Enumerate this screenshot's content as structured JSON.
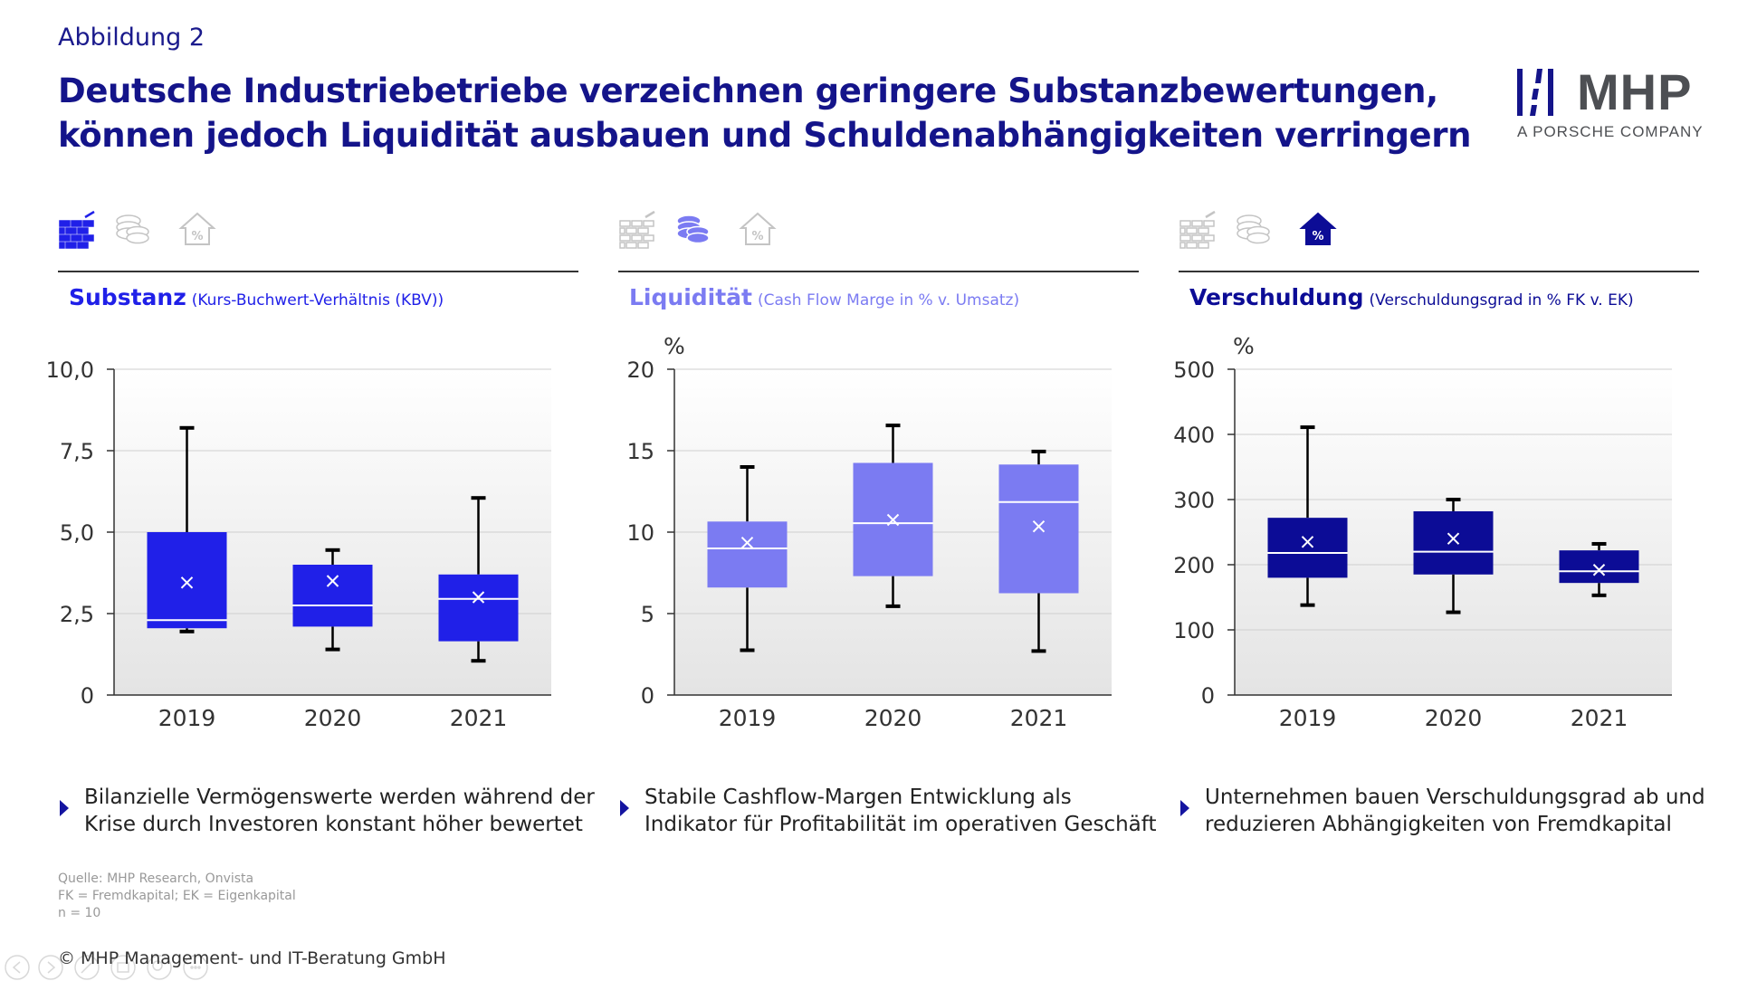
{
  "figure_label": "Abbildung 2",
  "headline": {
    "line1": "Deutsche Industriebetriebe verzeichnen geringere Substanzbewertungen,",
    "line2": "können jedoch Liquidität ausbauen und Schuldenabhängigkeiten verringern"
  },
  "logo": {
    "mark": "MHP",
    "sub": "A PORSCHE COMPANY"
  },
  "colors": {
    "navy": "#14148a",
    "blue": "#2020e8",
    "lavender": "#7b7bf2",
    "darkblue": "#0c0c96",
    "inactive": "#c4c4c4"
  },
  "panels": [
    {
      "icons": [
        "bricks-icon",
        "coins-icon",
        "house-percent-icon"
      ],
      "active_icon": 0,
      "title": "Substanz",
      "subtitle": "(Kurs-Buchwert-Verhältnis (KBV))",
      "unit": "",
      "bullet": [
        "Bilanzielle Vermögenswerte werden während der",
        "Krise durch Investoren konstant höher bewertet"
      ]
    },
    {
      "icons": [
        "bricks-icon",
        "coins-icon",
        "house-percent-icon"
      ],
      "active_icon": 1,
      "title": "Liquidität",
      "subtitle": "(Cash Flow Marge in % v. Umsatz)",
      "unit": "%",
      "bullet": [
        "Stabile Cashflow-Margen Entwicklung als",
        "Indikator für Profitabilität im operativen Geschäft"
      ]
    },
    {
      "icons": [
        "bricks-icon",
        "coins-icon",
        "house-percent-icon"
      ],
      "active_icon": 2,
      "title": "Verschuldung",
      "subtitle": "(Verschuldungsgrad in % FK v. EK)",
      "unit": "%",
      "bullet": [
        "Unternehmen bauen Verschuldungsgrad ab und",
        "reduzieren Abhängigkeiten von Fremdkapital"
      ]
    }
  ],
  "chart_data": [
    {
      "type": "boxplot",
      "title": "Substanz (Kurs-Buchwert-Verhältnis (KBV))",
      "color": "#2020e8",
      "categories": [
        "2019",
        "2020",
        "2021"
      ],
      "ylim": [
        0,
        10
      ],
      "yticks": [
        0,
        2.5,
        5,
        7.5,
        10
      ],
      "ytick_labels": [
        "0",
        "2,5",
        "5,0",
        "7,5",
        "10,0"
      ],
      "grid": true,
      "boxes": [
        {
          "min": 1.95,
          "q1": 2.05,
          "median": 2.3,
          "q3": 5.0,
          "max": 8.2,
          "mean": 3.45
        },
        {
          "min": 1.4,
          "q1": 2.1,
          "median": 2.75,
          "q3": 4.0,
          "max": 4.45,
          "mean": 3.5
        },
        {
          "min": 1.05,
          "q1": 1.65,
          "median": 2.95,
          "q3": 3.7,
          "max": 6.05,
          "mean": 3.0
        }
      ]
    },
    {
      "type": "boxplot",
      "title": "Liquidität (Cash Flow Marge in % v. Umsatz)",
      "color": "#7b7bf2",
      "categories": [
        "2019",
        "2020",
        "2021"
      ],
      "ylim": [
        0,
        20
      ],
      "yticks": [
        0,
        5,
        10,
        15,
        20
      ],
      "ytick_labels": [
        "0",
        "5",
        "10",
        "15",
        "20"
      ],
      "grid": true,
      "boxes": [
        {
          "min": 2.75,
          "q1": 6.6,
          "median": 9.0,
          "q3": 10.65,
          "max": 14.0,
          "mean": 9.35
        },
        {
          "min": 5.45,
          "q1": 7.3,
          "median": 10.55,
          "q3": 14.25,
          "max": 16.55,
          "mean": 10.75
        },
        {
          "min": 2.7,
          "q1": 6.25,
          "median": 11.85,
          "q3": 14.15,
          "max": 14.95,
          "mean": 10.35
        }
      ]
    },
    {
      "type": "boxplot",
      "title": "Verschuldung (Verschuldungsgrad in % FK v. EK)",
      "color": "#0c0c96",
      "categories": [
        "2019",
        "2020",
        "2021"
      ],
      "ylim": [
        0,
        500
      ],
      "yticks": [
        0,
        100,
        200,
        300,
        400,
        500
      ],
      "ytick_labels": [
        "0",
        "100",
        "200",
        "300",
        "400",
        "500"
      ],
      "grid": true,
      "boxes": [
        {
          "min": 138,
          "q1": 180,
          "median": 218,
          "q3": 272,
          "max": 411,
          "mean": 235
        },
        {
          "min": 127,
          "q1": 185,
          "median": 220,
          "q3": 282,
          "max": 300,
          "mean": 240
        },
        {
          "min": 153,
          "q1": 172,
          "median": 190,
          "q3": 222,
          "max": 232,
          "mean": 192
        }
      ]
    }
  ],
  "notes": [
    "Quelle: MHP Research, Onvista",
    "FK = Fremdkapital; EK = Eigenkapital",
    "n = 10"
  ],
  "copyright": "© MHP Management- und IT-Beratung GmbH"
}
